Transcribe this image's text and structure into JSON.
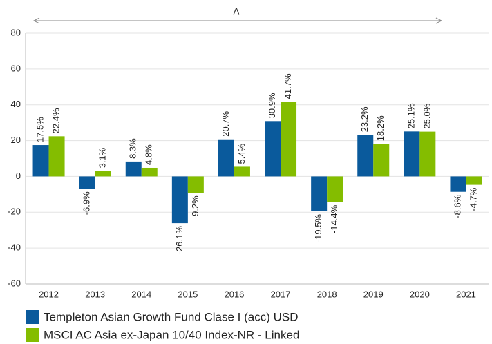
{
  "chart_data": {
    "type": "bar",
    "annotation": "A",
    "categories": [
      "2012",
      "2013",
      "2014",
      "2015",
      "2016",
      "2017",
      "2018",
      "2019",
      "2020",
      "2021"
    ],
    "series": [
      {
        "name": "Templeton Asian Growth Fund Clase I (acc) USD",
        "color": "#0a5a9c",
        "values": [
          17.5,
          -6.9,
          8.3,
          -26.1,
          20.7,
          30.9,
          -19.5,
          23.2,
          25.1,
          -8.6
        ],
        "value_labels": [
          "17.5%",
          "-6.9%",
          "8.3%",
          "-26.1%",
          "20.7%",
          "30.9%",
          "-19.5%",
          "23.2%",
          "25.1%",
          "-8.6%"
        ]
      },
      {
        "name": "MSCI AC Asia ex-Japan 10/40 Index-NR - Linked",
        "color": "#84bd00",
        "values": [
          22.4,
          3.1,
          4.8,
          -9.2,
          5.4,
          41.7,
          -14.4,
          18.2,
          25.0,
          -4.7
        ],
        "value_labels": [
          "22.4%",
          "3.1%",
          "4.8%",
          "-9.2%",
          "5.4%",
          "41.7%",
          "-14.4%",
          "18.2%",
          "25.0%",
          "-4.7%"
        ]
      }
    ],
    "ylim": [
      -60,
      80
    ],
    "yticks": [
      -60,
      -40,
      -20,
      0,
      20,
      40,
      60,
      80
    ],
    "grid": true
  }
}
